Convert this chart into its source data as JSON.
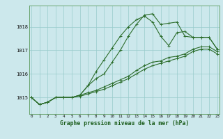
{
  "bg_color": "#cce8ec",
  "grid_color": "#99cccc",
  "line_color": "#2d6e2d",
  "marker_color": "#2d6e2d",
  "xlabel": "Graphe pression niveau de la mer (hPa)",
  "xlabel_color": "#1a5c1a",
  "x_ticks": [
    0,
    1,
    2,
    3,
    4,
    5,
    6,
    7,
    8,
    9,
    10,
    11,
    12,
    13,
    14,
    15,
    16,
    17,
    18,
    19,
    20,
    21,
    22,
    23
  ],
  "ylim": [
    1014.3,
    1018.9
  ],
  "yticks": [
    1015,
    1016,
    1017,
    1018
  ],
  "series": [
    [
      1015.0,
      1014.7,
      1014.8,
      1015.0,
      1015.0,
      1015.0,
      1015.1,
      1015.5,
      1016.1,
      1016.6,
      1017.1,
      1017.6,
      1018.0,
      1018.3,
      1018.45,
      1018.2,
      1017.6,
      1017.2,
      1017.75,
      1017.8,
      1017.55,
      1017.55,
      1017.55,
      1017.05
    ],
    [
      1015.0,
      1014.7,
      1014.8,
      1015.0,
      1015.0,
      1015.0,
      1015.1,
      1015.5,
      1015.8,
      1016.0,
      1016.5,
      1017.0,
      1017.6,
      1018.1,
      1018.5,
      1018.55,
      1018.1,
      1018.15,
      1018.2,
      1017.6,
      1017.55,
      1017.55,
      1017.55,
      1017.05
    ],
    [
      1015.0,
      1014.7,
      1014.8,
      1015.0,
      1015.0,
      1015.0,
      1015.1,
      1015.2,
      1015.3,
      1015.45,
      1015.6,
      1015.75,
      1015.9,
      1016.15,
      1016.35,
      1016.5,
      1016.55,
      1016.7,
      1016.75,
      1016.85,
      1017.05,
      1017.15,
      1017.15,
      1016.95
    ],
    [
      1015.0,
      1014.7,
      1014.8,
      1015.0,
      1015.0,
      1015.0,
      1015.05,
      1015.15,
      1015.25,
      1015.35,
      1015.5,
      1015.65,
      1015.8,
      1016.0,
      1016.2,
      1016.35,
      1016.45,
      1016.55,
      1016.65,
      1016.75,
      1016.95,
      1017.05,
      1017.05,
      1016.85
    ]
  ]
}
